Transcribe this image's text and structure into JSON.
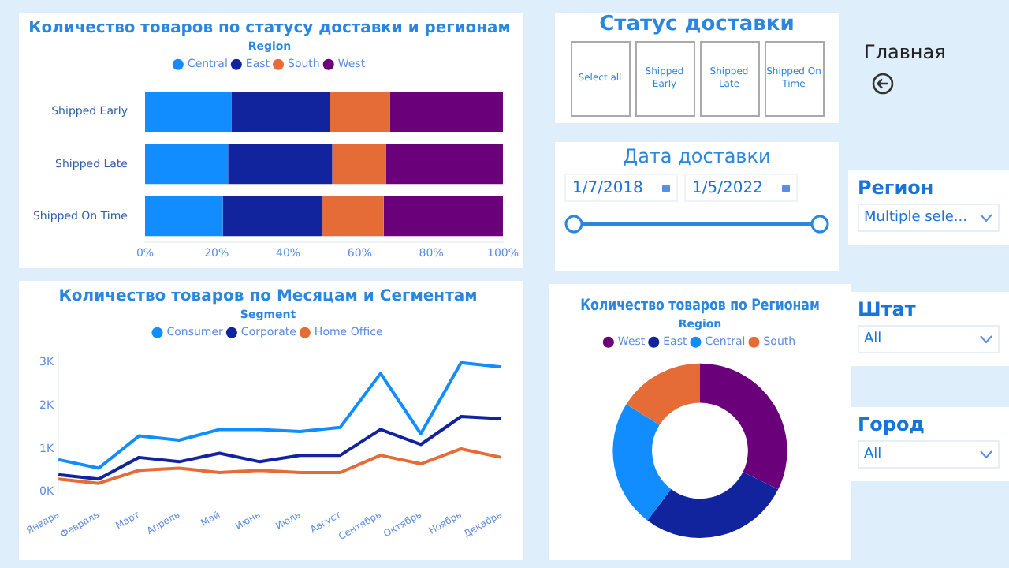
{
  "chart_data": [
    {
      "type": "bar",
      "orientation": "horizontal",
      "stacked": true,
      "title": "Количество товаров по статусу доставки и регионам",
      "legend_title": "Region",
      "legend": "top",
      "grid": false,
      "categories": [
        "Shipped Early",
        "Shipped Late",
        "Shipped On Time"
      ],
      "series": [
        {
          "name": "Central",
          "color": "#118dff",
          "values": [
            24.1,
            23.2,
            21.7
          ]
        },
        {
          "name": "East",
          "color": "#12239e",
          "values": [
            27.5,
            29.1,
            27.9
          ]
        },
        {
          "name": "South",
          "color": "#e66c37",
          "values": [
            16.8,
            15.0,
            17.1
          ]
        },
        {
          "name": "West",
          "color": "#6b007b",
          "values": [
            31.6,
            32.7,
            33.3
          ]
        }
      ],
      "xlim": [
        0,
        100
      ],
      "xticks": [
        {
          "value": 0,
          "label": "0%"
        },
        {
          "value": 20,
          "label": "20%"
        },
        {
          "value": 40,
          "label": "40%"
        },
        {
          "value": 60,
          "label": "60%"
        },
        {
          "value": 80,
          "label": "80%"
        },
        {
          "value": 100,
          "label": "100%"
        }
      ]
    },
    {
      "type": "line",
      "title": "Количество товаров по Месяцам и Сегментам",
      "legend_title": "Segment",
      "legend": "top",
      "grid": false,
      "marker": "none",
      "line_style": "solid",
      "categories": [
        "Январь",
        "Февраль",
        "Март",
        "Апрель",
        "Май",
        "Июнь",
        "Июль",
        "Август",
        "Сентябрь",
        "Октябрь",
        "Ноябрь",
        "Декабрь"
      ],
      "series": [
        {
          "name": "Consumer",
          "color": "#118dff",
          "values": [
            750,
            550,
            1300,
            1200,
            1450,
            1450,
            1400,
            1500,
            2750,
            1350,
            3000,
            2900
          ]
        },
        {
          "name": "Corporate",
          "color": "#12239e",
          "values": [
            400,
            300,
            800,
            700,
            900,
            700,
            850,
            850,
            1450,
            1100,
            1750,
            1700
          ]
        },
        {
          "name": "Home Office",
          "color": "#e66c37",
          "values": [
            300,
            200,
            500,
            550,
            450,
            500,
            450,
            450,
            850,
            650,
            1000,
            800
          ]
        }
      ],
      "ylim": [
        0,
        3200
      ],
      "yticks": [
        {
          "value": 0,
          "label": "0K"
        },
        {
          "value": 1000,
          "label": "1K"
        },
        {
          "value": 2000,
          "label": "2K"
        },
        {
          "value": 3000,
          "label": "3K"
        }
      ]
    },
    {
      "type": "donut",
      "title": "Количество товаров по Регионам",
      "legend_title": "Region",
      "legend": "top",
      "categories": [
        "West",
        "East",
        "Central",
        "South"
      ],
      "values": [
        32.3,
        28.0,
        23.7,
        16.0
      ],
      "colors": [
        "#6b007b",
        "#12239e",
        "#118dff",
        "#e66c37"
      ]
    },
    {
      "type": "other",
      "title": "Статус доставки",
      "annotations": [
        "Select all",
        "Shipped Early",
        "Shipped Late",
        "Shipped On Time"
      ]
    },
    {
      "type": "other",
      "title": "Главная"
    },
    {
      "type": "other",
      "title": "Дата доставки",
      "annotations": [
        "1/7/2018",
        "1/5/2022"
      ]
    },
    {
      "type": "other",
      "title": "Регион",
      "annotations": [
        "Multiple sele..."
      ]
    },
    {
      "type": "other",
      "title": "Штат",
      "annotations": [
        "All"
      ]
    },
    {
      "type": "other",
      "title": "Город",
      "annotations": [
        "All"
      ]
    }
  ]
}
